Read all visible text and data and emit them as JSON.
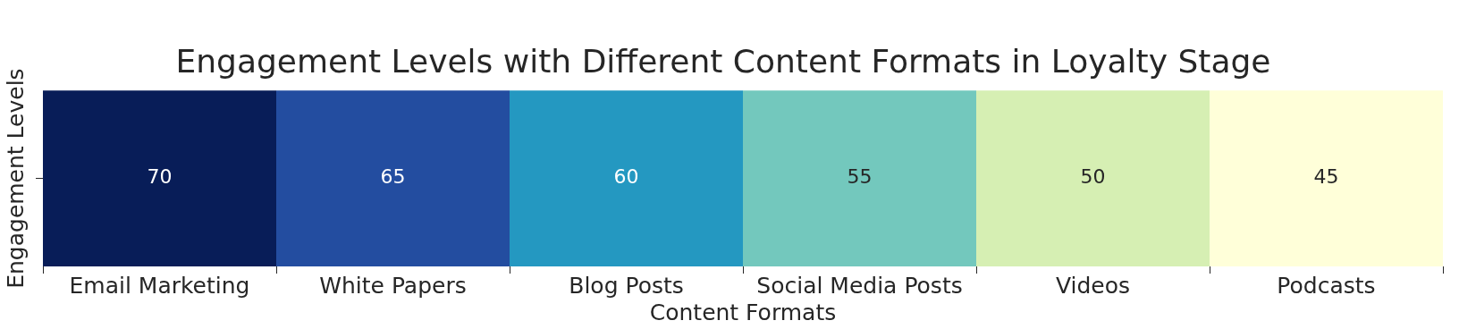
{
  "chart_data": {
    "type": "heatmap",
    "title": "Engagement Levels with Different Content Formats in Loyalty Stage",
    "xlabel": "Content Formats",
    "ylabel": "Engagement Levels",
    "categories": [
      "Email Marketing",
      "White Papers",
      "Blog Posts",
      "Social Media Posts",
      "Videos",
      "Podcasts"
    ],
    "y_categories": [
      null
    ],
    "cells": [
      [
        70,
        65,
        60,
        55,
        50,
        45
      ]
    ],
    "data_labels": true
  }
}
